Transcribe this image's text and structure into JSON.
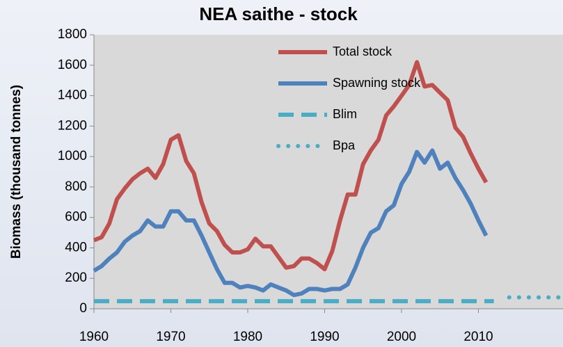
{
  "chart_data": {
    "type": "line",
    "title": "NEA saithe - stock",
    "y_label": "Biomass (thousand tonnes)",
    "x": [
      1960,
      1961,
      1962,
      1963,
      1964,
      1965,
      1966,
      1967,
      1968,
      1969,
      1970,
      1971,
      1972,
      1973,
      1974,
      1975,
      1976,
      1977,
      1978,
      1979,
      1980,
      1981,
      1982,
      1983,
      1984,
      1985,
      1986,
      1987,
      1988,
      1989,
      1990,
      1991,
      1992,
      1993,
      1994,
      1995,
      1996,
      1997,
      1998,
      1999,
      2000,
      2001,
      2002,
      2003,
      2004,
      2005,
      2006,
      2007,
      2008,
      2009,
      2010,
      2011
    ],
    "series": [
      {
        "name": "Total stock",
        "color": "#c0504d",
        "style": "solid",
        "values": [
          450,
          470,
          560,
          720,
          790,
          850,
          890,
          920,
          860,
          950,
          1110,
          1140,
          970,
          890,
          700,
          560,
          510,
          420,
          370,
          370,
          390,
          460,
          410,
          410,
          340,
          270,
          280,
          330,
          330,
          300,
          260,
          380,
          580,
          750,
          750,
          950,
          1040,
          1110,
          1270,
          1330,
          1400,
          1470,
          1620,
          1460,
          1470,
          1420,
          1370,
          1190,
          1130,
          1020,
          920,
          830
        ]
      },
      {
        "name": "Spawning stock",
        "color": "#4f81bd",
        "style": "solid",
        "values": [
          250,
          280,
          330,
          370,
          440,
          480,
          510,
          580,
          540,
          540,
          640,
          640,
          580,
          580,
          480,
          370,
          260,
          170,
          170,
          140,
          150,
          140,
          120,
          160,
          140,
          120,
          90,
          100,
          130,
          130,
          120,
          130,
          130,
          160,
          270,
          400,
          500,
          530,
          640,
          680,
          820,
          900,
          1030,
          960,
          1040,
          920,
          960,
          860,
          780,
          690,
          580,
          480
        ]
      },
      {
        "name": "Blim",
        "color": "#4bacc6",
        "style": "dashed",
        "x": [
          1960,
          2012
        ],
        "values": [
          50,
          50
        ]
      },
      {
        "name": "Bpa",
        "color": "#4bacc6",
        "style": "dotted",
        "x": [
          2014,
          2021
        ],
        "values": [
          75,
          75
        ]
      }
    ],
    "xlim": [
      1960,
      2021
    ],
    "xticks": [
      1960,
      1970,
      1980,
      1990,
      2000,
      2010
    ],
    "ylim": [
      0,
      1800
    ],
    "yticks": [
      0,
      200,
      400,
      600,
      800,
      1000,
      1200,
      1400,
      1600,
      1800
    ],
    "grid": false,
    "legend": "upper center"
  }
}
